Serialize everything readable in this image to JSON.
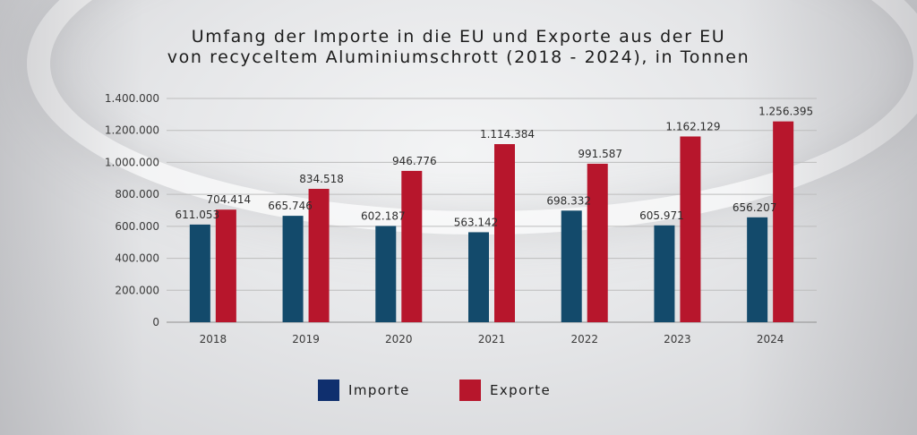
{
  "chart_data": {
    "type": "bar",
    "title": "Umfang der Importe in die EU und Exporte aus der EU",
    "subtitle": "von recyceltem Aluminiumschrott (2018 - 2024), in Tonnen",
    "categories": [
      "2018",
      "2019",
      "2020",
      "2021",
      "2022",
      "2023",
      "2024"
    ],
    "series": [
      {
        "name": "Importe",
        "color": "#134a6b",
        "values": [
          611053,
          665746,
          602187,
          563142,
          698332,
          605971,
          656207
        ],
        "labels": [
          "611.053",
          "665.746",
          "602.187",
          "563.142",
          "698.332",
          "605.971",
          "656.207"
        ]
      },
      {
        "name": "Exporte",
        "color": "#b7162c",
        "values": [
          704414,
          834518,
          946776,
          1114384,
          991587,
          1162129,
          1256395
        ],
        "labels": [
          "704.414",
          "834.518",
          "946.776",
          "1.114.384",
          "991.587",
          "1.162.129",
          "1.256.395"
        ]
      }
    ],
    "ylim": [
      0,
      1400000
    ],
    "yticks": [
      0,
      200000,
      400000,
      600000,
      800000,
      1000000,
      1200000,
      1400000
    ],
    "ytick_labels": [
      "0",
      "200.000",
      "400.000",
      "600.000",
      "800.000",
      "1.000.000",
      "1.200.000",
      "1.400.000"
    ],
    "grid": true,
    "legend_position": "bottom"
  },
  "legend": {
    "importe_label": "Importe",
    "importe_color": "#0f2f6e",
    "exporte_label": "Exporte",
    "exporte_color": "#b7162c"
  }
}
